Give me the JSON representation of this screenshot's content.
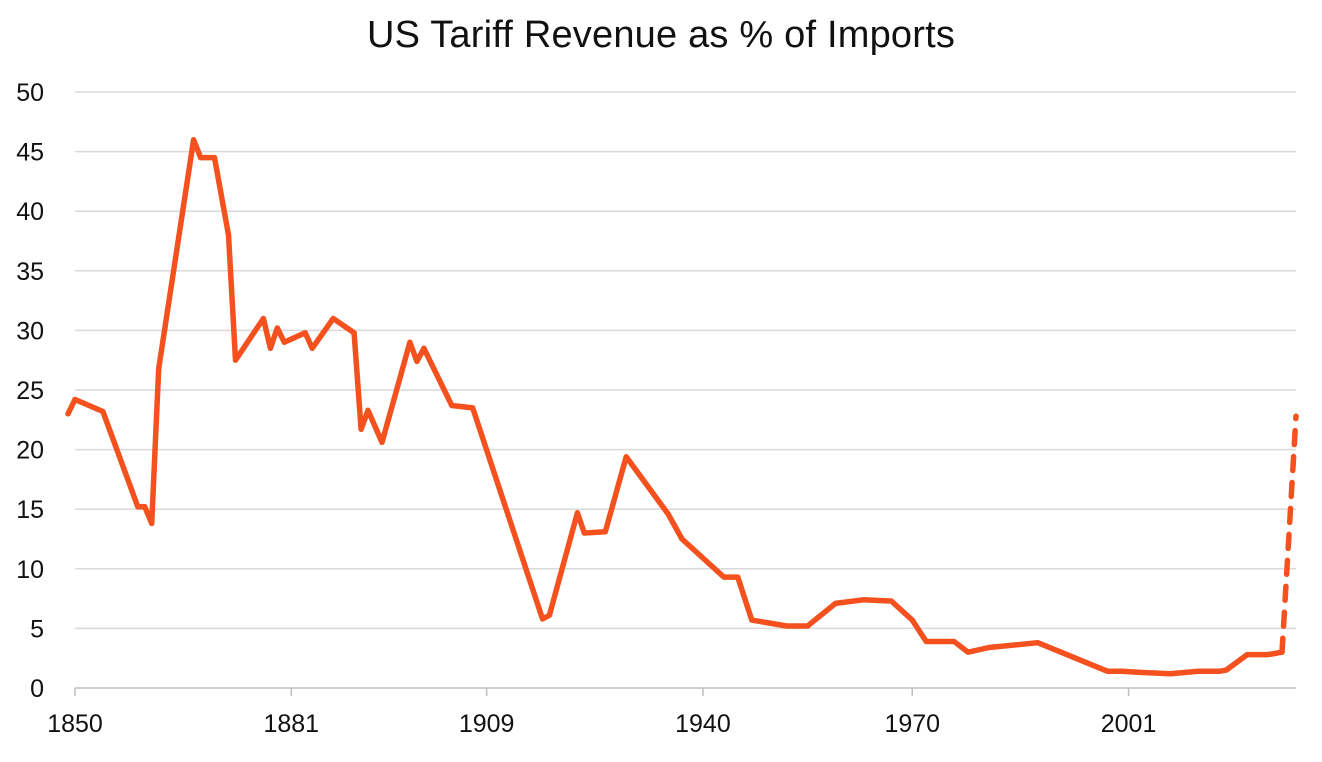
{
  "chart_data": {
    "type": "line",
    "title": "US Tariff Revenue as % of Imports",
    "xlabel": "",
    "ylabel": "",
    "xlim": [
      1850,
      2025
    ],
    "ylim": [
      0,
      50
    ],
    "yticks": [
      0,
      5,
      10,
      15,
      20,
      25,
      30,
      35,
      40,
      45,
      50
    ],
    "xticks": [
      1850,
      1881,
      1909,
      1940,
      1970,
      2001
    ],
    "grid": true,
    "legend": "none",
    "color": "#f4511e",
    "series": [
      {
        "style": "solid",
        "x": [
          1849,
          1850,
          1854,
          1859,
          1860,
          1861,
          1862,
          1867,
          1868,
          1870,
          1872,
          1873,
          1877,
          1878,
          1879,
          1880,
          1883,
          1884,
          1887,
          1890,
          1891,
          1892,
          1894,
          1898,
          1899,
          1900,
          1904,
          1907,
          1917,
          1918,
          1922,
          1923,
          1926,
          1929,
          1935,
          1937,
          1943,
          1945,
          1947,
          1952,
          1955,
          1959,
          1963,
          1967,
          1970,
          1972,
          1976,
          1978,
          1981,
          1988,
          1998,
          2000,
          2003,
          2007,
          2011,
          2014,
          2015,
          2018,
          2021,
          2023
        ],
        "y": [
          23.0,
          24.2,
          23.2,
          15.2,
          15.2,
          13.8,
          26.8,
          46.0,
          44.5,
          44.5,
          38.0,
          27.5,
          31.0,
          28.5,
          30.2,
          29.0,
          29.8,
          28.5,
          31.0,
          29.8,
          21.7,
          23.3,
          20.6,
          29.0,
          27.4,
          28.5,
          23.7,
          23.5,
          5.8,
          6.1,
          14.7,
          13.0,
          13.1,
          19.4,
          14.6,
          12.5,
          9.3,
          9.3,
          5.7,
          5.2,
          5.2,
          7.1,
          7.4,
          7.3,
          5.7,
          3.9,
          3.9,
          3.0,
          3.4,
          3.8,
          1.4,
          1.4,
          1.3,
          1.2,
          1.4,
          1.4,
          1.5,
          2.8,
          2.8,
          3.0
        ]
      },
      {
        "style": "dashed",
        "x": [
          2023,
          2025
        ],
        "y": [
          3.0,
          22.8
        ]
      }
    ]
  }
}
